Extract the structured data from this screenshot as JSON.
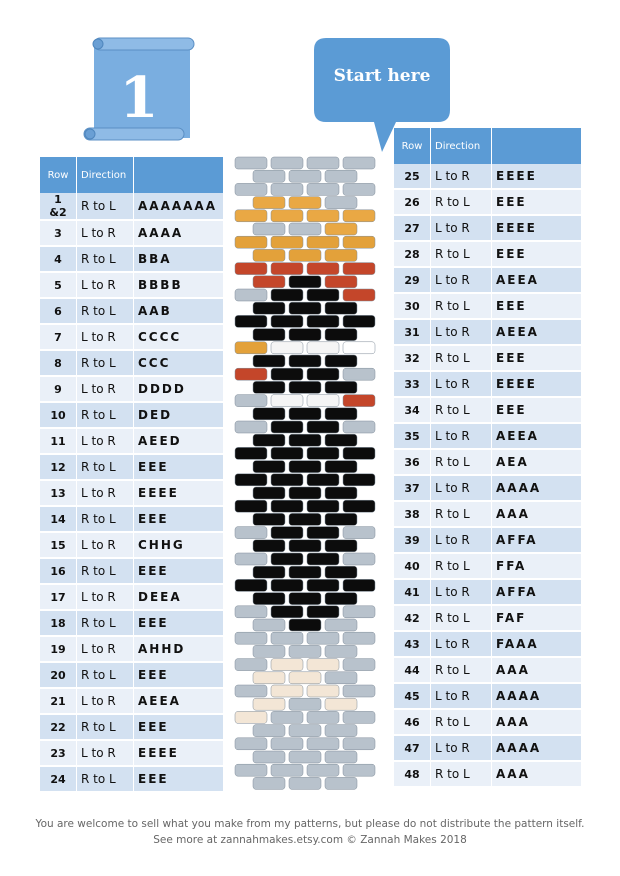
{
  "pattern_number": "1",
  "start_label": "Start here",
  "headers": {
    "row": "Row",
    "direction": "Direction"
  },
  "left_rows": [
    {
      "row": "1 &2",
      "dir": "R to L",
      "seq": "AAAAAAA"
    },
    {
      "row": "3",
      "dir": "L to R",
      "seq": "AAAA"
    },
    {
      "row": "4",
      "dir": "R to L",
      "seq": "BBA"
    },
    {
      "row": "5",
      "dir": "L to R",
      "seq": "BBBB"
    },
    {
      "row": "6",
      "dir": "R to L",
      "seq": "AAB"
    },
    {
      "row": "7",
      "dir": "L to R",
      "seq": "CCCC"
    },
    {
      "row": "8",
      "dir": "R to L",
      "seq": "CCC"
    },
    {
      "row": "9",
      "dir": "L to R",
      "seq": "DDDD"
    },
    {
      "row": "10",
      "dir": "R to L",
      "seq": "DED"
    },
    {
      "row": "11",
      "dir": "L to R",
      "seq": "AEED"
    },
    {
      "row": "12",
      "dir": "R to L",
      "seq": "EEE"
    },
    {
      "row": "13",
      "dir": "L to R",
      "seq": "EEEE"
    },
    {
      "row": "14",
      "dir": "R to L",
      "seq": "EEE"
    },
    {
      "row": "15",
      "dir": "L to R",
      "seq": "CHHG"
    },
    {
      "row": "16",
      "dir": "R to L",
      "seq": "EEE"
    },
    {
      "row": "17",
      "dir": "L to R",
      "seq": "DEEA"
    },
    {
      "row": "18",
      "dir": "R to L",
      "seq": "EEE"
    },
    {
      "row": "19",
      "dir": "L to R",
      "seq": "AHHD"
    },
    {
      "row": "20",
      "dir": "R to L",
      "seq": "EEE"
    },
    {
      "row": "21",
      "dir": "L to R",
      "seq": "AEEA"
    },
    {
      "row": "22",
      "dir": "R to L",
      "seq": "EEE"
    },
    {
      "row": "23",
      "dir": "L to R",
      "seq": "EEEE"
    },
    {
      "row": "24",
      "dir": "R to L",
      "seq": "EEE"
    }
  ],
  "right_rows": [
    {
      "row": "25",
      "dir": "L to R",
      "seq": "EEEE"
    },
    {
      "row": "26",
      "dir": "R to L",
      "seq": "EEE"
    },
    {
      "row": "27",
      "dir": "L to R",
      "seq": "EEEE"
    },
    {
      "row": "28",
      "dir": "R to L",
      "seq": "EEE"
    },
    {
      "row": "29",
      "dir": "L to R",
      "seq": "AEEA"
    },
    {
      "row": "30",
      "dir": "R to L",
      "seq": "EEE"
    },
    {
      "row": "31",
      "dir": "L to R",
      "seq": "AEEA"
    },
    {
      "row": "32",
      "dir": "R to L",
      "seq": "EEE"
    },
    {
      "row": "33",
      "dir": "L to R",
      "seq": "EEEE"
    },
    {
      "row": "34",
      "dir": "R to L",
      "seq": "EEE"
    },
    {
      "row": "35",
      "dir": "L to R",
      "seq": "AEEA"
    },
    {
      "row": "36",
      "dir": "R to L",
      "seq": "AEA"
    },
    {
      "row": "37",
      "dir": "L to R",
      "seq": "AAAA"
    },
    {
      "row": "38",
      "dir": "R to L",
      "seq": "AAA"
    },
    {
      "row": "39",
      "dir": "L to R",
      "seq": "AFFA"
    },
    {
      "row": "40",
      "dir": "R to L",
      "seq": "FFA"
    },
    {
      "row": "41",
      "dir": "L to R",
      "seq": "AFFA"
    },
    {
      "row": "42",
      "dir": "R to L",
      "seq": "FAF"
    },
    {
      "row": "43",
      "dir": "L to R",
      "seq": "FAAA"
    },
    {
      "row": "44",
      "dir": "R to L",
      "seq": "AAA"
    },
    {
      "row": "45",
      "dir": "L to R",
      "seq": "AAAA"
    },
    {
      "row": "46",
      "dir": "R to L",
      "seq": "AAA"
    },
    {
      "row": "47",
      "dir": "L to R",
      "seq": "AAAA"
    },
    {
      "row": "48",
      "dir": "R to L",
      "seq": "AAA"
    }
  ],
  "bead_colors": {
    "A": "#b8c2cc",
    "B": "#e9a844",
    "C": "#e3a13a",
    "D": "#c4462a",
    "E": "#0c0c0c",
    "F": "#f3e6d6",
    "G": "#ffffff",
    "H": "#f5f5f5"
  },
  "theme": {
    "header": "#5b9bd5",
    "row_odd": "#d3e1f1",
    "row_even": "#eaf0f8",
    "shape": "#7aaee0"
  },
  "watermark": "ZannahMakes",
  "footer": {
    "line1": "You are welcome to sell what you make from my patterns, but please do not distribute the pattern itself.",
    "line2": "See more at zannahmakes.etsy.com © Zannah Makes 2018"
  }
}
